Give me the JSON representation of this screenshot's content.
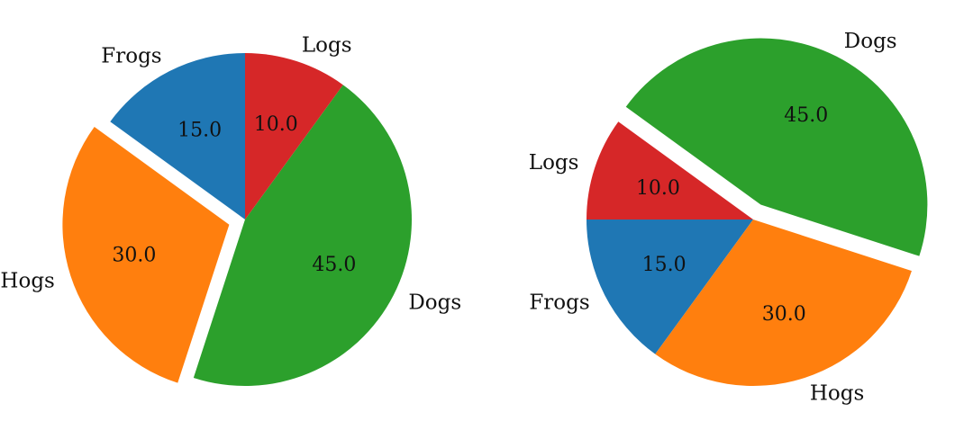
{
  "chart_data": [
    {
      "type": "pie",
      "categories": [
        "Frogs",
        "Hogs",
        "Dogs",
        "Logs"
      ],
      "values": [
        15.0,
        30.0,
        45.0,
        10.0
      ],
      "value_labels": [
        "15.0",
        "30.0",
        "45.0",
        "10.0"
      ],
      "colors": [
        "#1f77b4",
        "#ff7f0e",
        "#2ca02c",
        "#d62728"
      ],
      "explode": [
        0,
        0.1,
        0,
        0
      ],
      "start_angle_deg": 90,
      "direction": "counterclockwise"
    },
    {
      "type": "pie",
      "categories": [
        "Frogs",
        "Hogs",
        "Dogs",
        "Logs"
      ],
      "values": [
        15.0,
        30.0,
        45.0,
        10.0
      ],
      "value_labels": [
        "15.0",
        "30.0",
        "45.0",
        "10.0"
      ],
      "colors": [
        "#1f77b4",
        "#ff7f0e",
        "#2ca02c",
        "#d62728"
      ],
      "explode": [
        0,
        0,
        0.1,
        0
      ],
      "start_angle_deg": 180,
      "direction": "counterclockwise"
    }
  ]
}
